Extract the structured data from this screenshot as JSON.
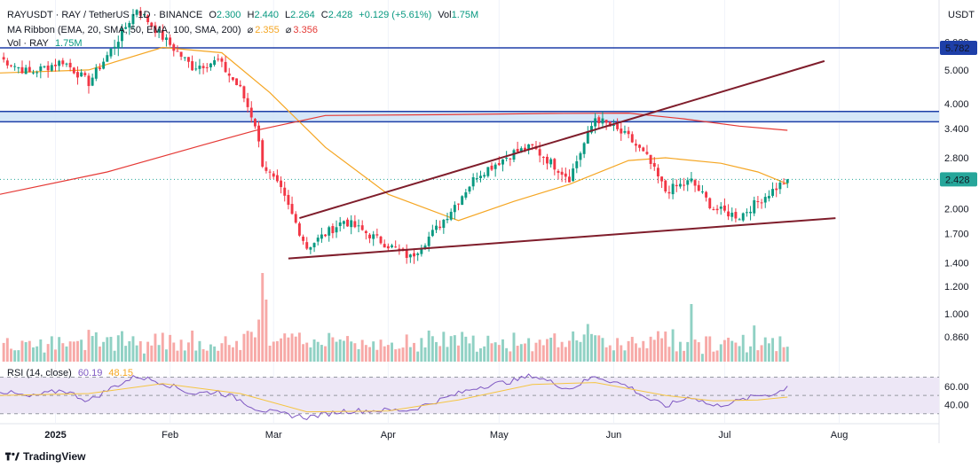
{
  "header": {
    "symbol": "RAYUSDT · RAY / TetherUS · 1D · BINANCE",
    "o_label": "O",
    "o_value": "2.300",
    "h_label": "H",
    "h_value": "2.440",
    "l_label": "L",
    "l_value": "2.264",
    "c_label": "C",
    "c_value": "2.428",
    "change": "+0.129 (+5.61%)",
    "vol_label": "Vol",
    "vol_value": "1.75M"
  },
  "ma_ribbon": {
    "label": "MA Ribbon (EMA, 20, SMA, 50, EMA, 100, SMA, 200)",
    "sym1": "⌀",
    "value1": "2.355",
    "sym2": "⌀",
    "value2": "3.356"
  },
  "vol_legend": {
    "label": "Vol · RAY",
    "value": "1.75M"
  },
  "rsi_legend": {
    "label": "RSI (14, close)",
    "value1": "60.19",
    "value2": "48.15"
  },
  "currency": "USDT",
  "brand": "TradingView",
  "colors": {
    "up": "#089981",
    "down": "#f23645",
    "vol_up": "#90d1c4",
    "vol_down": "#f7a9a7",
    "ma_orange": "#f5a623",
    "ma_red": "#e53935",
    "wedge": "#7f1d2b",
    "resistance": "#1e3fa8",
    "band_fill": "#cfe3f7",
    "rsi_line": "#7e57c2",
    "rsi_ma": "#f5c542",
    "rsi_band": "#ede7f6",
    "price_tag": "#26a69a",
    "level_tag": "#1e3fa8"
  },
  "chart_data": [
    {
      "type": "candlestick",
      "title": "RAYUSDT · RAY / TetherUS · 1D · BINANCE",
      "y_scale": "log",
      "y_ticks": [
        0.86,
        1.0,
        1.2,
        1.4,
        1.7,
        2.0,
        2.428,
        2.8,
        3.4,
        4.0,
        5.0,
        5.782,
        6.0
      ],
      "y_tick_labels": [
        "0.860",
        "1.000",
        "1.200",
        "1.400",
        "1.700",
        "2.000",
        "2.428",
        "2.800",
        "3.400",
        "4.000",
        "5.000",
        "5.782",
        "6.000"
      ],
      "x_tick_labels": [
        "2025",
        "Feb",
        "Mar",
        "Apr",
        "May",
        "Jun",
        "Jul",
        "Aug"
      ],
      "x_tick_dates": [
        "2025-01-01",
        "2025-02-01",
        "2025-03-01",
        "2025-04-01",
        "2025-05-01",
        "2025-06-01",
        "2025-07-01",
        "2025-08-01"
      ],
      "x_range": [
        "2024-12-17",
        "2025-08-28"
      ],
      "last_price": 2.428,
      "resistance_level": 5.782,
      "support_band": [
        3.55,
        3.8
      ],
      "wedge_upper": [
        [
          "2025-03-08",
          1.88
        ],
        [
          "2025-07-28",
          5.3
        ]
      ],
      "wedge_lower": [
        [
          "2025-03-05",
          1.44
        ],
        [
          "2025-07-31",
          1.88
        ]
      ],
      "anchors": [
        [
          "2024-12-17",
          5.4
        ],
        [
          "2024-12-25",
          4.9
        ],
        [
          "2025-01-03",
          5.3
        ],
        [
          "2025-01-10",
          4.6
        ],
        [
          "2025-01-17",
          5.9
        ],
        [
          "2025-01-23",
          7.5
        ],
        [
          "2025-01-30",
          6.2
        ],
        [
          "2025-02-07",
          5.1
        ],
        [
          "2025-02-14",
          5.3
        ],
        [
          "2025-02-20",
          4.4
        ],
        [
          "2025-02-24",
          3.5
        ],
        [
          "2025-02-26",
          2.7
        ],
        [
          "2025-03-03",
          2.25
        ],
        [
          "2025-03-10",
          1.55
        ],
        [
          "2025-03-20",
          1.85
        ],
        [
          "2025-04-07",
          1.45
        ],
        [
          "2025-04-15",
          1.8
        ],
        [
          "2025-04-25",
          2.5
        ],
        [
          "2025-05-05",
          2.9
        ],
        [
          "2025-05-10",
          3.0
        ],
        [
          "2025-05-20",
          2.45
        ],
        [
          "2025-05-27",
          3.65
        ],
        [
          "2025-06-05",
          3.2
        ],
        [
          "2025-06-10",
          2.8
        ],
        [
          "2025-06-15",
          2.25
        ],
        [
          "2025-06-22",
          2.4
        ],
        [
          "2025-06-28",
          2.0
        ],
        [
          "2025-07-05",
          1.9
        ],
        [
          "2025-07-10",
          2.1
        ],
        [
          "2025-07-15",
          2.3
        ],
        [
          "2025-07-18",
          2.43
        ]
      ],
      "ema20": [
        [
          "2024-12-17",
          4.9
        ],
        [
          "2025-01-10",
          5.0
        ],
        [
          "2025-01-30",
          5.8
        ],
        [
          "2025-02-15",
          5.6
        ],
        [
          "2025-02-28",
          4.3
        ],
        [
          "2025-03-15",
          3.0
        ],
        [
          "2025-04-01",
          2.2
        ],
        [
          "2025-04-20",
          1.85
        ],
        [
          "2025-05-05",
          2.1
        ],
        [
          "2025-05-20",
          2.35
        ],
        [
          "2025-06-05",
          2.75
        ],
        [
          "2025-06-15",
          2.8
        ],
        [
          "2025-06-30",
          2.7
        ],
        [
          "2025-07-10",
          2.55
        ],
        [
          "2025-07-18",
          2.355
        ]
      ],
      "sma200": [
        [
          "2024-12-17",
          2.2
        ],
        [
          "2025-01-15",
          2.55
        ],
        [
          "2025-02-10",
          3.05
        ],
        [
          "2025-02-24",
          3.35
        ],
        [
          "2025-03-15",
          3.7
        ],
        [
          "2025-04-15",
          3.72
        ],
        [
          "2025-05-15",
          3.75
        ],
        [
          "2025-06-05",
          3.76
        ],
        [
          "2025-06-20",
          3.62
        ],
        [
          "2025-07-05",
          3.45
        ],
        [
          "2025-07-18",
          3.356
        ]
      ],
      "volume_max": 1.0,
      "rsi_scale": {
        "min": 20,
        "max": 85,
        "ticks": [
          40.0,
          60.0
        ],
        "tick_labels": [
          "40.00",
          "60.00"
        ],
        "band": [
          30,
          70
        ]
      },
      "rsi": [
        [
          "2024-12-17",
          55
        ],
        [
          "2024-12-25",
          48
        ],
        [
          "2025-01-03",
          56
        ],
        [
          "2025-01-10",
          44
        ],
        [
          "2025-01-17",
          60
        ],
        [
          "2025-01-23",
          71
        ],
        [
          "2025-01-30",
          64
        ],
        [
          "2025-02-07",
          52
        ],
        [
          "2025-02-14",
          54
        ],
        [
          "2025-02-20",
          45
        ],
        [
          "2025-02-24",
          36
        ],
        [
          "2025-03-01",
          31
        ],
        [
          "2025-03-10",
          26
        ],
        [
          "2025-03-20",
          33
        ],
        [
          "2025-04-07",
          34
        ],
        [
          "2025-04-15",
          45
        ],
        [
          "2025-04-25",
          59
        ],
        [
          "2025-05-05",
          66
        ],
        [
          "2025-05-10",
          72
        ],
        [
          "2025-05-20",
          57
        ],
        [
          "2025-05-27",
          71
        ],
        [
          "2025-06-05",
          60
        ],
        [
          "2025-06-10",
          47
        ],
        [
          "2025-06-15",
          38
        ],
        [
          "2025-06-22",
          49
        ],
        [
          "2025-06-28",
          38
        ],
        [
          "2025-07-05",
          44
        ],
        [
          "2025-07-10",
          50
        ],
        [
          "2025-07-15",
          52
        ],
        [
          "2025-07-18",
          60.19
        ]
      ],
      "rsi_ma": [
        [
          "2024-12-17",
          50
        ],
        [
          "2025-01-10",
          52
        ],
        [
          "2025-01-30",
          63
        ],
        [
          "2025-02-20",
          52
        ],
        [
          "2025-03-10",
          32
        ],
        [
          "2025-04-01",
          33
        ],
        [
          "2025-04-20",
          45
        ],
        [
          "2025-05-10",
          62
        ],
        [
          "2025-05-27",
          64
        ],
        [
          "2025-06-15",
          50
        ],
        [
          "2025-06-28",
          44
        ],
        [
          "2025-07-10",
          45
        ],
        [
          "2025-07-18",
          48.15
        ]
      ]
    }
  ]
}
